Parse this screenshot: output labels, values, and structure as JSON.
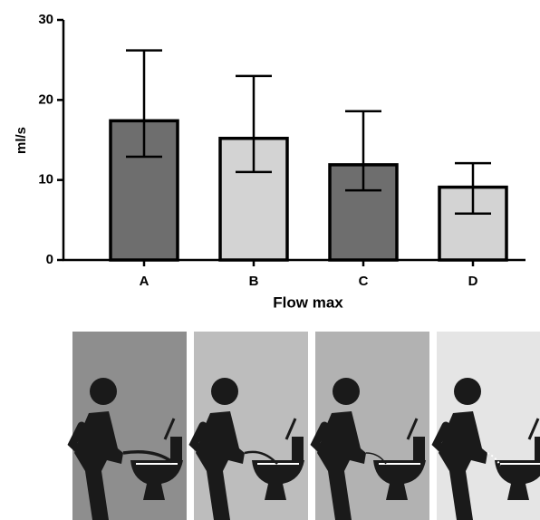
{
  "chart_data": {
    "type": "bar",
    "x_label": "Flow max",
    "y_label": "ml/s",
    "categories": [
      "A",
      "B",
      "C",
      "D"
    ],
    "values": [
      17.4,
      15.2,
      11.9,
      9.1
    ],
    "error_high": [
      26.2,
      23.0,
      18.6,
      12.1
    ],
    "error_low": [
      12.9,
      11.0,
      8.7,
      5.8
    ],
    "colors": [
      "#6e6e6e",
      "#d3d3d3",
      "#6e6e6e",
      "#d3d3d3"
    ],
    "ylim": [
      0,
      30
    ],
    "yticks": [
      0,
      10,
      20,
      30
    ]
  }
}
